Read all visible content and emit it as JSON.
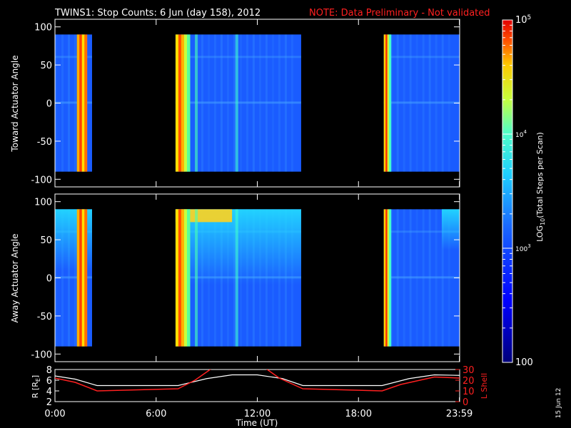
{
  "title": "TWINS1: Stop Counts:  6 Jun (day 158), 2012",
  "note": "NOTE: Data Preliminary - Not validated",
  "date_stamp": "15 Jun 12",
  "colors": {
    "note": "#ff2020",
    "lshell": "#ff2020",
    "r": "#ffffff"
  },
  "chart_data": [
    {
      "type": "heatmap",
      "panel": "toward",
      "ylabel": "Toward Actuator Angle",
      "ylim": [
        -110,
        110
      ],
      "yticks": [
        -100,
        -50,
        0,
        50,
        100
      ],
      "xlim": [
        0,
        24
      ],
      "data_extent_deg": [
        -90,
        90
      ],
      "data_blocks_hours": [
        [
          0,
          2.2
        ],
        [
          7.15,
          14.6
        ],
        [
          19.5,
          24
        ]
      ]
    },
    {
      "type": "heatmap",
      "panel": "away",
      "ylabel": "Away Actuator Angle",
      "ylim": [
        -110,
        110
      ],
      "yticks": [
        -100,
        -50,
        0,
        50,
        100
      ],
      "xlim": [
        0,
        24
      ],
      "data_extent_deg": [
        -90,
        90
      ],
      "data_blocks_hours": [
        [
          0,
          2.2
        ],
        [
          7.15,
          14.6
        ],
        [
          19.5,
          24
        ]
      ]
    },
    {
      "type": "line",
      "panel": "orbit",
      "xlabel": "Time (UT)",
      "xlim": [
        0,
        24
      ],
      "xticks": [
        0,
        6,
        12,
        18,
        23.983
      ],
      "xtick_labels": [
        "0:00",
        "6:00",
        "12:00",
        "18:00",
        "23:59"
      ],
      "ylabel_left": "R [R",
      "ylabel_left_sub": "E",
      "ylabel_left_end": "]",
      "ylim_left": [
        2,
        8
      ],
      "yticks_left": [
        2,
        4,
        6,
        8
      ],
      "ylabel_right": "L Shell",
      "ylim_right": [
        0,
        30
      ],
      "yticks_right": [
        0,
        10,
        20,
        30
      ],
      "series": [
        {
          "name": "R",
          "x": [
            0,
            1.2,
            2.5,
            7.3,
            9,
            10.5,
            12,
            13.5,
            14.7,
            19.4,
            21,
            22.5,
            24
          ],
          "y": [
            6.8,
            6.2,
            5.0,
            5.0,
            6.3,
            7.0,
            7.0,
            6.3,
            5.0,
            5.0,
            6.3,
            7.0,
            6.9
          ]
        },
        {
          "name": "L Shell",
          "x": [
            0,
            1.2,
            2.5,
            7.3,
            8.3,
            9.3,
            12.5,
            13.3,
            14.7,
            19.4,
            20.5,
            22.5,
            24
          ],
          "y": [
            22,
            18,
            10,
            12,
            20,
            31,
            31,
            22,
            12,
            10,
            16,
            23,
            22
          ]
        }
      ]
    },
    {
      "type": "heatmap",
      "panel": "colorbar",
      "zlabel_prefix": "LOG",
      "zlabel_sub": "10",
      "zlabel_rest": "(Total Steps per Scan)",
      "zlim": [
        100,
        100000
      ],
      "ticks": [
        100,
        1000,
        10000,
        100000
      ],
      "tick_bases": [
        "10",
        "10",
        "100"
      ],
      "tick_exps": [
        "5",
        "4",
        "3"
      ]
    }
  ]
}
